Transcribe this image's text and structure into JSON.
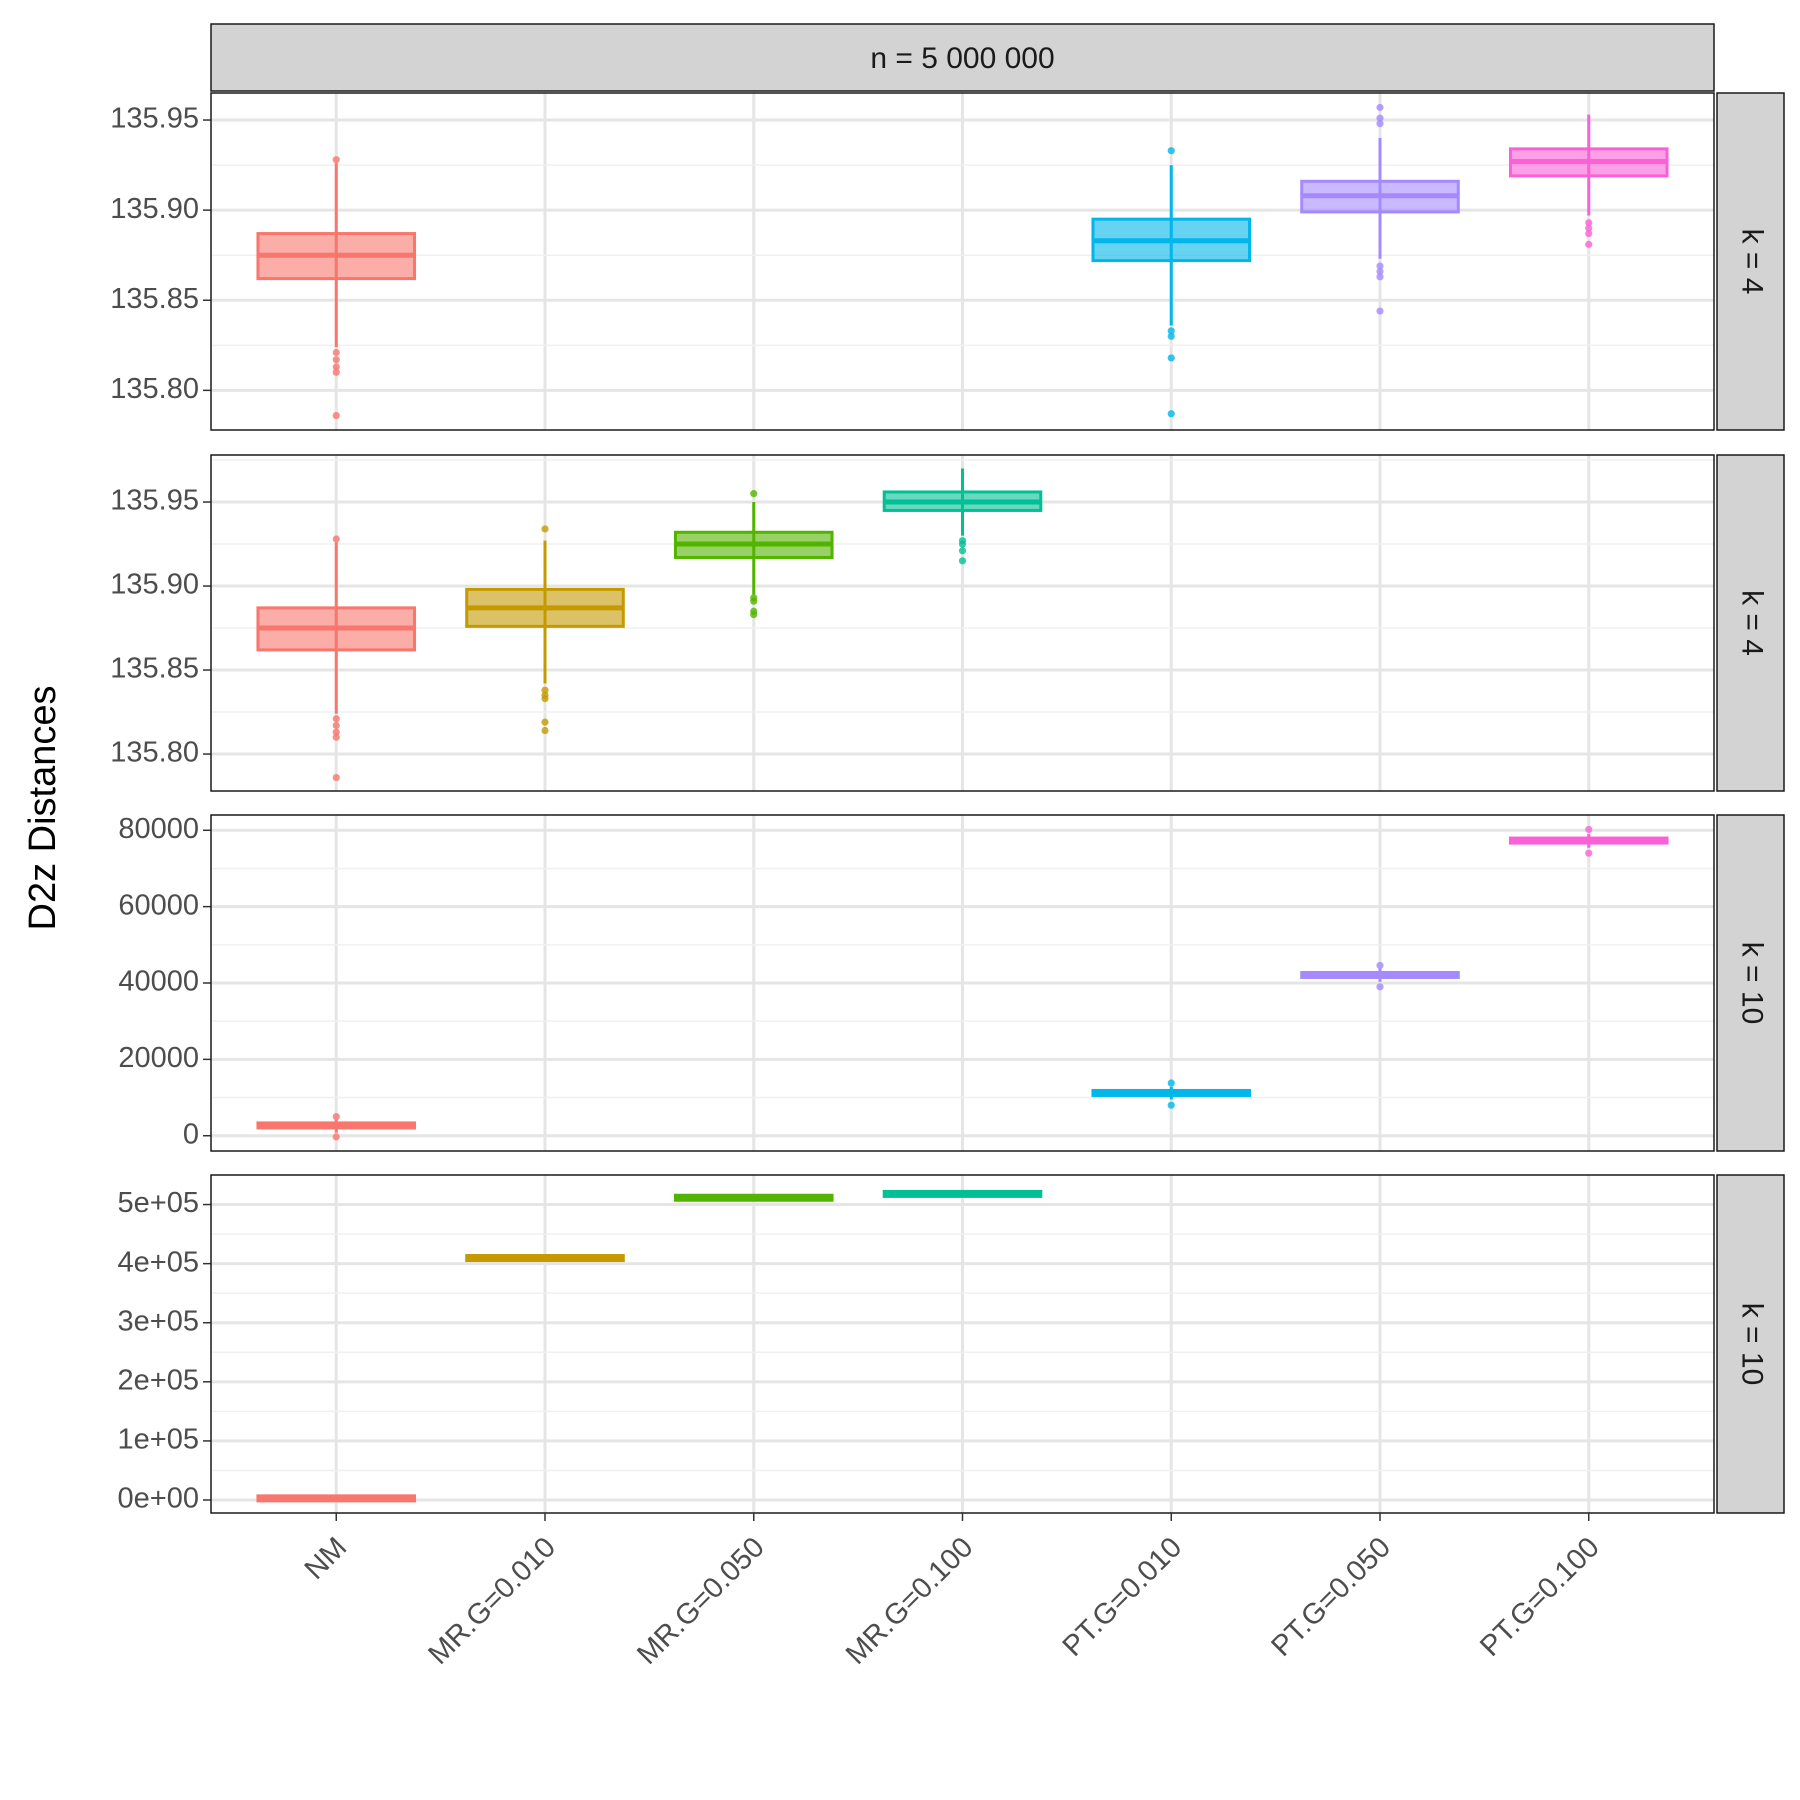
{
  "chart_data": {
    "type": "boxplot",
    "facet_col_label": "n = 5 000 000",
    "ylabel": "D2z Distances",
    "xlabel": "",
    "categories": [
      "NM",
      "MR.G=0.010",
      "MR.G=0.050",
      "MR.G=0.100",
      "PT.G=0.010",
      "PT.G=0.050",
      "PT.G=0.100"
    ],
    "colors": [
      "#F8766D",
      "#C49A00",
      "#53B400",
      "#00C094",
      "#00B6EB",
      "#A58AFF",
      "#FB61D7"
    ],
    "panels": [
      {
        "row_label": "k = 4",
        "ylim": [
          135.778,
          135.965
        ],
        "yticks": [
          135.8,
          135.85,
          135.9,
          135.95
        ],
        "ytick_labels": [
          "135.80",
          "135.85",
          "135.90",
          "135.95"
        ],
        "boxes": [
          {
            "category": "NM",
            "q1": 135.862,
            "median": 135.875,
            "q3": 135.887,
            "whisker_low": 135.824,
            "whisker_high": 135.926,
            "outliers": [
              135.786,
              135.81,
              135.813,
              135.817,
              135.821,
              135.928
            ]
          },
          {
            "category": "PT.G=0.010",
            "q1": 135.872,
            "median": 135.883,
            "q3": 135.895,
            "whisker_low": 135.836,
            "whisker_high": 135.925,
            "outliers": [
              135.787,
              135.818,
              135.83,
              135.833,
              135.933
            ]
          },
          {
            "category": "PT.G=0.050",
            "q1": 135.899,
            "median": 135.908,
            "q3": 135.916,
            "whisker_low": 135.873,
            "whisker_high": 135.94,
            "outliers": [
              135.844,
              135.863,
              135.866,
              135.869,
              135.948,
              135.951,
              135.957
            ]
          },
          {
            "category": "PT.G=0.100",
            "q1": 135.919,
            "median": 135.927,
            "q3": 135.934,
            "whisker_low": 135.897,
            "whisker_high": 135.953,
            "outliers": [
              135.881,
              135.887,
              135.89,
              135.893
            ]
          }
        ]
      },
      {
        "row_label": "k = 4",
        "ylim": [
          135.778,
          135.978
        ],
        "yticks": [
          135.8,
          135.85,
          135.9,
          135.95
        ],
        "ytick_labels": [
          "135.80",
          "135.85",
          "135.90",
          "135.95"
        ],
        "boxes": [
          {
            "category": "NM",
            "q1": 135.862,
            "median": 135.875,
            "q3": 135.887,
            "whisker_low": 135.824,
            "whisker_high": 135.926,
            "outliers": [
              135.786,
              135.81,
              135.813,
              135.817,
              135.821,
              135.928
            ]
          },
          {
            "category": "MR.G=0.010",
            "q1": 135.876,
            "median": 135.887,
            "q3": 135.898,
            "whisker_low": 135.842,
            "whisker_high": 135.927,
            "outliers": [
              135.814,
              135.819,
              135.833,
              135.835,
              135.838,
              135.934
            ]
          },
          {
            "category": "MR.G=0.050",
            "q1": 135.917,
            "median": 135.925,
            "q3": 135.932,
            "whisker_low": 135.895,
            "whisker_high": 135.95,
            "outliers": [
              135.883,
              135.885,
              135.891,
              135.893,
              135.955
            ]
          },
          {
            "category": "MR.G=0.100",
            "q1": 135.945,
            "median": 135.95,
            "q3": 135.956,
            "whisker_low": 135.93,
            "whisker_high": 135.97,
            "outliers": [
              135.915,
              135.921,
              135.925,
              135.927
            ]
          }
        ]
      },
      {
        "row_label": "k = 10",
        "ylim": [
          -4000,
          84000
        ],
        "yticks": [
          0,
          20000,
          40000,
          60000,
          80000
        ],
        "ytick_labels": [
          "0",
          "20000",
          "40000",
          "60000",
          "80000"
        ],
        "boxes": [
          {
            "category": "NM",
            "q1": 2200,
            "median": 2700,
            "q3": 3200,
            "whisker_low": 800,
            "whisker_high": 4200,
            "outliers": [
              -300,
              5000
            ]
          },
          {
            "category": "PT.G=0.010",
            "q1": 10700,
            "median": 11200,
            "q3": 11700,
            "whisker_low": 9500,
            "whisker_high": 12800,
            "outliers": [
              8000,
              13800
            ]
          },
          {
            "category": "PT.G=0.050",
            "q1": 41600,
            "median": 42100,
            "q3": 42600,
            "whisker_low": 40300,
            "whisker_high": 43800,
            "outliers": [
              39000,
              44600
            ]
          },
          {
            "category": "PT.G=0.100",
            "q1": 76800,
            "median": 77300,
            "q3": 77800,
            "whisker_low": 75400,
            "whisker_high": 79000,
            "outliers": [
              74000,
              80200
            ]
          }
        ]
      },
      {
        "row_label": "k = 10",
        "ylim": [
          -22000,
          550000
        ],
        "yticks": [
          0,
          100000,
          200000,
          300000,
          400000,
          500000
        ],
        "ytick_labels": [
          "0e+00",
          "1e+05",
          "2e+05",
          "3e+05",
          "4e+05",
          "5e+05"
        ],
        "boxes": [
          {
            "category": "NM",
            "q1": 1500,
            "median": 2700,
            "q3": 4000,
            "whisker_low": 600,
            "whisker_high": 4800,
            "outliers": []
          },
          {
            "category": "MR.G=0.010",
            "q1": 408500,
            "median": 409500,
            "q3": 410500,
            "whisker_low": 407500,
            "whisker_high": 411500,
            "outliers": []
          },
          {
            "category": "MR.G=0.050",
            "q1": 510500,
            "median": 511500,
            "q3": 512500,
            "whisker_low": 509500,
            "whisker_high": 513500,
            "outliers": []
          },
          {
            "category": "MR.G=0.100",
            "q1": 517000,
            "median": 518000,
            "q3": 519000,
            "whisker_low": 516000,
            "whisker_high": 520000,
            "outliers": []
          }
        ]
      }
    ]
  }
}
